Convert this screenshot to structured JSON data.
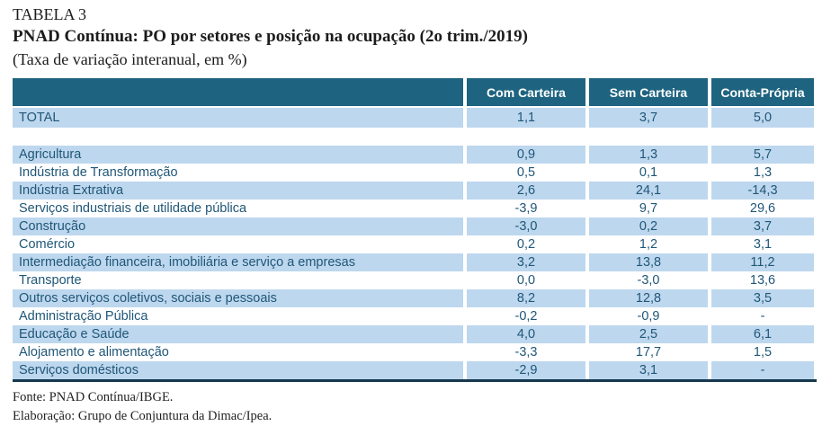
{
  "header": {
    "table_label": "TABELA 3",
    "title": "PNAD Contínua: PO por setores e posição na ocupação (2o trim./2019)",
    "subtitle": "(Taxa de variação interanual, em %)"
  },
  "chart_data": {
    "type": "table",
    "columns": [
      "Com Carteira",
      "Sem Carteira",
      "Conta-Própria"
    ],
    "total": {
      "label": "TOTAL",
      "values": [
        "1,1",
        "3,7",
        "5,0"
      ]
    },
    "rows": [
      {
        "label": "Agricultura",
        "values": [
          "0,9",
          "1,3",
          "5,7"
        ]
      },
      {
        "label": "Indústria de Transformação",
        "values": [
          "0,5",
          "0,1",
          "1,3"
        ]
      },
      {
        "label": "Indústria Extrativa",
        "values": [
          "2,6",
          "24,1",
          "-14,3"
        ]
      },
      {
        "label": "Serviços industriais de utilidade pública",
        "values": [
          "-3,9",
          "9,7",
          "29,6"
        ]
      },
      {
        "label": "Construção",
        "values": [
          "-3,0",
          "0,2",
          "3,7"
        ]
      },
      {
        "label": "Comércio",
        "values": [
          "0,2",
          "1,2",
          "3,1"
        ]
      },
      {
        "label": "Intermediação financeira, imobiliária e serviço a empresas",
        "values": [
          "3,2",
          "13,8",
          "11,2"
        ]
      },
      {
        "label": "Transporte",
        "values": [
          "0,0",
          "-3,0",
          "13,6"
        ]
      },
      {
        "label": "Outros serviços coletivos, sociais e pessoais",
        "values": [
          "8,2",
          "12,8",
          "3,5"
        ]
      },
      {
        "label": "Administração Pública",
        "values": [
          "-0,2",
          "-0,9",
          "-"
        ]
      },
      {
        "label": "Educação e Saúde",
        "values": [
          "4,0",
          "2,5",
          "6,1"
        ]
      },
      {
        "label": "Alojamento e alimentação",
        "values": [
          "-3,3",
          "17,7",
          "1,5"
        ]
      },
      {
        "label": "Serviços domésticos",
        "values": [
          "-2,9",
          "3,1",
          "-"
        ]
      }
    ]
  },
  "footer": {
    "source": "Fonte: PNAD Contínua/IBGE.",
    "elaboration": "Elaboração: Grupo de Conjuntura da Dimac/Ipea."
  },
  "colors": {
    "header_bg": "#1e6480",
    "row_alt_bg": "#bdd7ee",
    "cell_text": "#205778",
    "header_text": "#ffffff",
    "bottom_border": "#16384e"
  }
}
